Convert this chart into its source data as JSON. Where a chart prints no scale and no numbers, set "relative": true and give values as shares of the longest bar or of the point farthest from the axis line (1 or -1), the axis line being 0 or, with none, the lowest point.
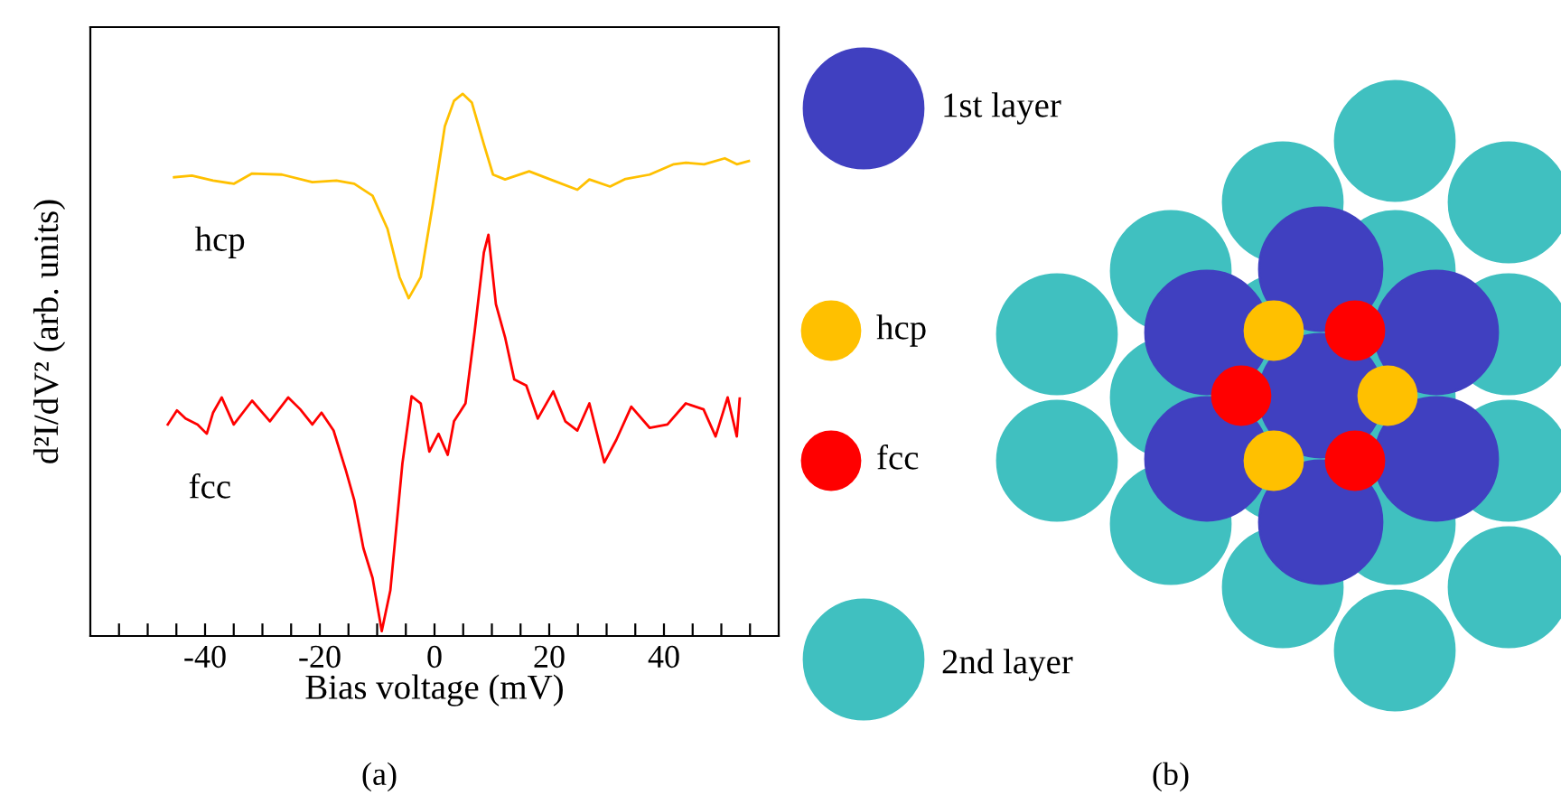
{
  "chart_data": [
    {
      "type": "line",
      "xlabel": "Bias voltage (mV)",
      "ylabel": "d²I/dV² (arb. units)",
      "relative": true,
      "xlim": [
        -60,
        60
      ],
      "xticks": [
        {
          "value": -55,
          "label": null
        },
        {
          "value": -50,
          "label": null
        },
        {
          "value": -45,
          "label": null
        },
        -40,
        {
          "value": -35,
          "label": null
        },
        {
          "value": -30,
          "label": null
        },
        {
          "value": -25,
          "label": null
        },
        -20,
        {
          "value": -15,
          "label": null
        },
        {
          "value": -10,
          "label": null
        },
        {
          "value": -5,
          "label": null
        },
        0,
        {
          "value": 5,
          "label": null
        },
        {
          "value": 10,
          "label": null
        },
        {
          "value": 15,
          "label": null
        },
        20,
        {
          "value": 25,
          "label": null
        },
        {
          "value": 30,
          "label": null
        },
        {
          "value": 35,
          "label": null
        },
        40,
        {
          "value": 45,
          "label": null
        },
        {
          "value": 50,
          "label": null
        },
        {
          "value": 55,
          "label": null
        }
      ],
      "series": [
        {
          "name": "hcp",
          "color": "#ffc000",
          "x": [
            -45.4,
            -42.3,
            -38.6,
            -35.0,
            -31.8,
            -26.6,
            -21.3,
            -17.1,
            -14.0,
            -10.8,
            -8.2,
            -6.1,
            -4.5,
            -2.4,
            -0.3,
            1.8,
            3.4,
            4.9,
            6.5,
            8.6,
            10.2,
            12.3,
            16.5,
            20.7,
            24.9,
            27.0,
            30.6,
            33.3,
            37.5,
            41.7,
            43.8,
            47.0,
            50.6,
            52.7,
            54.8
          ],
          "values": [
            0.846,
            0.849,
            0.84,
            0.834,
            0.853,
            0.851,
            0.837,
            0.84,
            0.834,
            0.812,
            0.751,
            0.662,
            0.623,
            0.662,
            0.796,
            0.94,
            0.987,
            1.0,
            0.984,
            0.907,
            0.851,
            0.842,
            0.857,
            0.84,
            0.823,
            0.842,
            0.829,
            0.843,
            0.851,
            0.87,
            0.873,
            0.87,
            0.881,
            0.87,
            0.876
          ]
        },
        {
          "name": "fcc",
          "color": "#ff0000",
          "x": [
            -46.5,
            -44.9,
            -43.4,
            -41.3,
            -39.7,
            -38.6,
            -37.1,
            -35.0,
            -31.8,
            -28.7,
            -25.5,
            -23.4,
            -21.3,
            -19.7,
            -17.6,
            -15.5,
            -14.0,
            -12.4,
            -10.8,
            -9.2,
            -7.7,
            -5.6,
            -4.0,
            -2.4,
            -0.9,
            0.7,
            2.3,
            3.4,
            5.4,
            7.0,
            8.6,
            9.4,
            10.7,
            12.3,
            13.9,
            16.0,
            18.0,
            20.7,
            22.8,
            24.9,
            27.0,
            29.6,
            31.7,
            34.3,
            37.5,
            40.6,
            43.8,
            46.9,
            49.0,
            51.1,
            52.7,
            53.2
          ],
          "values": [
            0.39,
            0.416,
            0.401,
            0.39,
            0.373,
            0.412,
            0.44,
            0.39,
            0.434,
            0.396,
            0.44,
            0.418,
            0.39,
            0.412,
            0.379,
            0.307,
            0.251,
            0.162,
            0.107,
            0.009,
            0.084,
            0.318,
            0.442,
            0.429,
            0.34,
            0.373,
            0.334,
            0.396,
            0.429,
            0.562,
            0.707,
            0.74,
            0.612,
            0.551,
            0.473,
            0.462,
            0.401,
            0.451,
            0.396,
            0.379,
            0.429,
            0.32,
            0.362,
            0.423,
            0.384,
            0.39,
            0.429,
            0.418,
            0.368,
            0.44,
            0.368,
            0.438
          ]
        }
      ],
      "annotations": [
        "(a)"
      ]
    },
    {
      "type": "other",
      "annotations": [
        "1st layer",
        "hcp",
        "fcc",
        "2nd layer",
        "(b)"
      ]
    }
  ]
}
